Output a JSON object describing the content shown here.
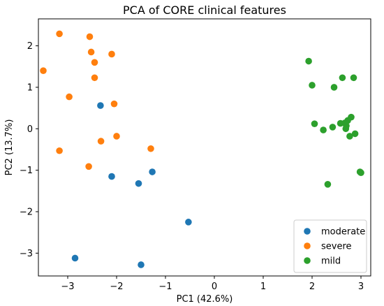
{
  "chart_data": {
    "type": "scatter",
    "title": "PCA of CORE clinical features",
    "xlabel": "PC1 (42.6%)",
    "ylabel": "PC2 (13.7%)",
    "xlim": [
      -3.6,
      3.2
    ],
    "ylim": [
      -3.55,
      2.65
    ],
    "xticks": [
      -3,
      -2,
      -1,
      0,
      1,
      2,
      3
    ],
    "yticks": [
      -3,
      -2,
      -1,
      0,
      1,
      2
    ],
    "xtick_labels": [
      "−3",
      "−2",
      "−1",
      "0",
      "1",
      "2",
      "3"
    ],
    "ytick_labels": [
      "−3",
      "−2",
      "−1",
      "0",
      "1",
      "2"
    ],
    "grid": false,
    "legend_position": "lower-right",
    "series": [
      {
        "name": "moderate",
        "color": "#1f77b4",
        "points": [
          [
            -2.33,
            0.56
          ],
          [
            -2.1,
            -1.15
          ],
          [
            -1.27,
            -1.04
          ],
          [
            -1.55,
            -1.32
          ],
          [
            -0.53,
            -2.25
          ],
          [
            -2.85,
            -3.12
          ],
          [
            -1.5,
            -3.28
          ]
        ]
      },
      {
        "name": "severe",
        "color": "#ff7f0e",
        "points": [
          [
            -3.17,
            2.29
          ],
          [
            -2.55,
            2.22
          ],
          [
            -2.52,
            1.85
          ],
          [
            -2.1,
            1.8
          ],
          [
            -2.45,
            1.6
          ],
          [
            -3.5,
            1.4
          ],
          [
            -2.45,
            1.23
          ],
          [
            -2.97,
            0.77
          ],
          [
            -2.05,
            0.6
          ],
          [
            -2.0,
            -0.18
          ],
          [
            -2.32,
            -0.3
          ],
          [
            -1.3,
            -0.48
          ],
          [
            -3.17,
            -0.53
          ],
          [
            -2.57,
            -0.91
          ]
        ]
      },
      {
        "name": "mild",
        "color": "#2ca02c",
        "points": [
          [
            1.93,
            1.63
          ],
          [
            2.0,
            1.05
          ],
          [
            2.62,
            1.23
          ],
          [
            2.85,
            1.23
          ],
          [
            2.45,
            1.0
          ],
          [
            2.05,
            0.12
          ],
          [
            2.42,
            0.04
          ],
          [
            2.23,
            -0.03
          ],
          [
            2.58,
            0.13
          ],
          [
            2.67,
            0.14
          ],
          [
            2.7,
            0.07
          ],
          [
            2.73,
            0.2
          ],
          [
            2.8,
            0.28
          ],
          [
            2.69,
            0.0
          ],
          [
            2.77,
            -0.18
          ],
          [
            2.88,
            -0.12
          ],
          [
            2.98,
            -1.04
          ],
          [
            3.0,
            -1.06
          ],
          [
            2.32,
            -1.34
          ]
        ]
      }
    ]
  }
}
